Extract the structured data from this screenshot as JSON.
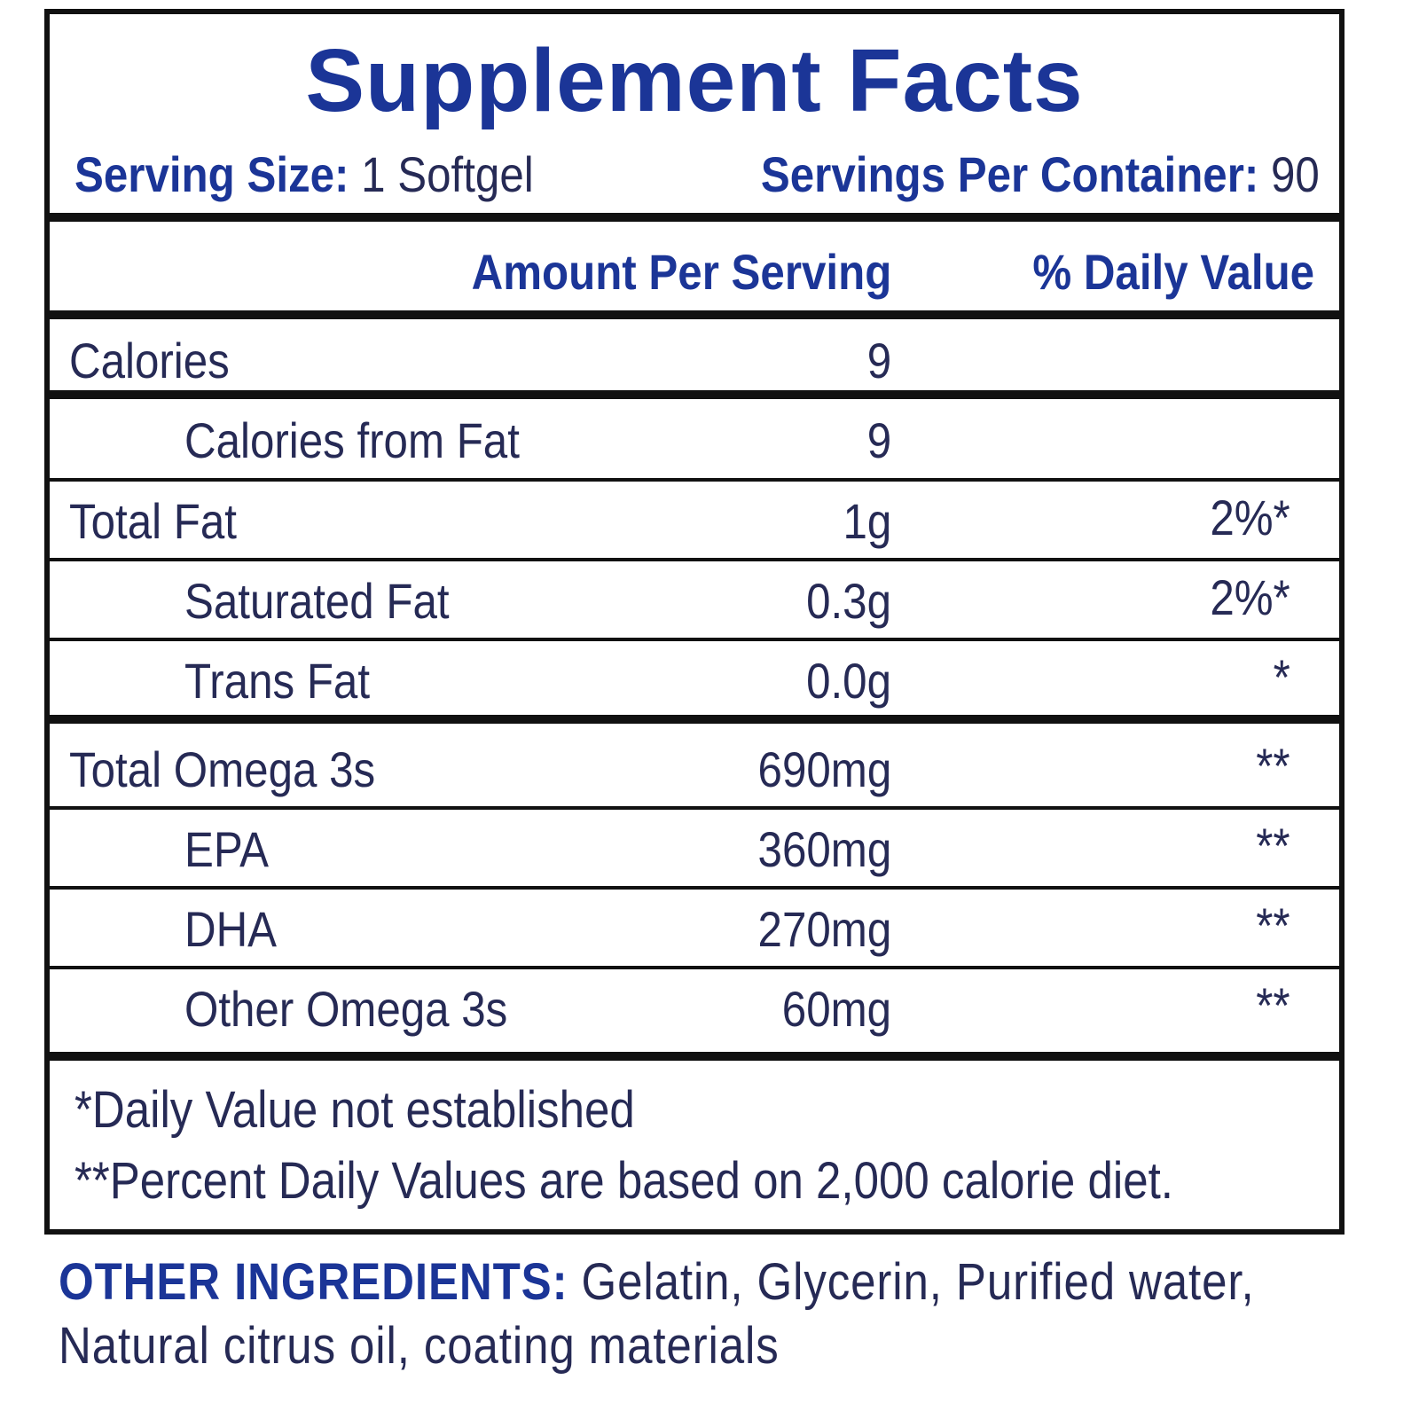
{
  "title": "Supplement Facts",
  "serving": {
    "size_label": "Serving Size:",
    "size": "1 Softgel",
    "per_container_label": "Servings Per Container:",
    "per_container": "90"
  },
  "table": {
    "header": {
      "amount": "Amount Per Serving",
      "daily_value": "% Daily Value"
    },
    "rows": [
      {
        "name": "Calories",
        "amount": "9"
      },
      {
        "name": "Calories from Fat",
        "amount": "9"
      },
      {
        "name": "Total Fat",
        "amount": "1g",
        "daily_value": "2%*"
      },
      {
        "name": "Saturated Fat",
        "amount": "0.3g",
        "daily_value": "2%*"
      },
      {
        "name": "Trans Fat",
        "amount": "0.0g",
        "daily_value": "*"
      },
      {
        "name": "Total Omega 3s",
        "amount": "690mg",
        "daily_value": "**"
      },
      {
        "name": "EPA",
        "amount": "360mg",
        "daily_value": "**"
      },
      {
        "name": "DHA",
        "amount": "270mg",
        "daily_value": "**"
      },
      {
        "name": "Other Omega 3s",
        "amount": "60mg",
        "daily_value": "**"
      }
    ]
  },
  "footnotes": [
    "*Daily Value not established",
    "**Percent Daily Values are based on 2,000 calorie diet."
  ],
  "other_ingredients": {
    "label": "OTHER INGREDIENTS:",
    "text": "Gelatin, Glycerin, Purified water, Natural citrus oil, coating materials"
  }
}
